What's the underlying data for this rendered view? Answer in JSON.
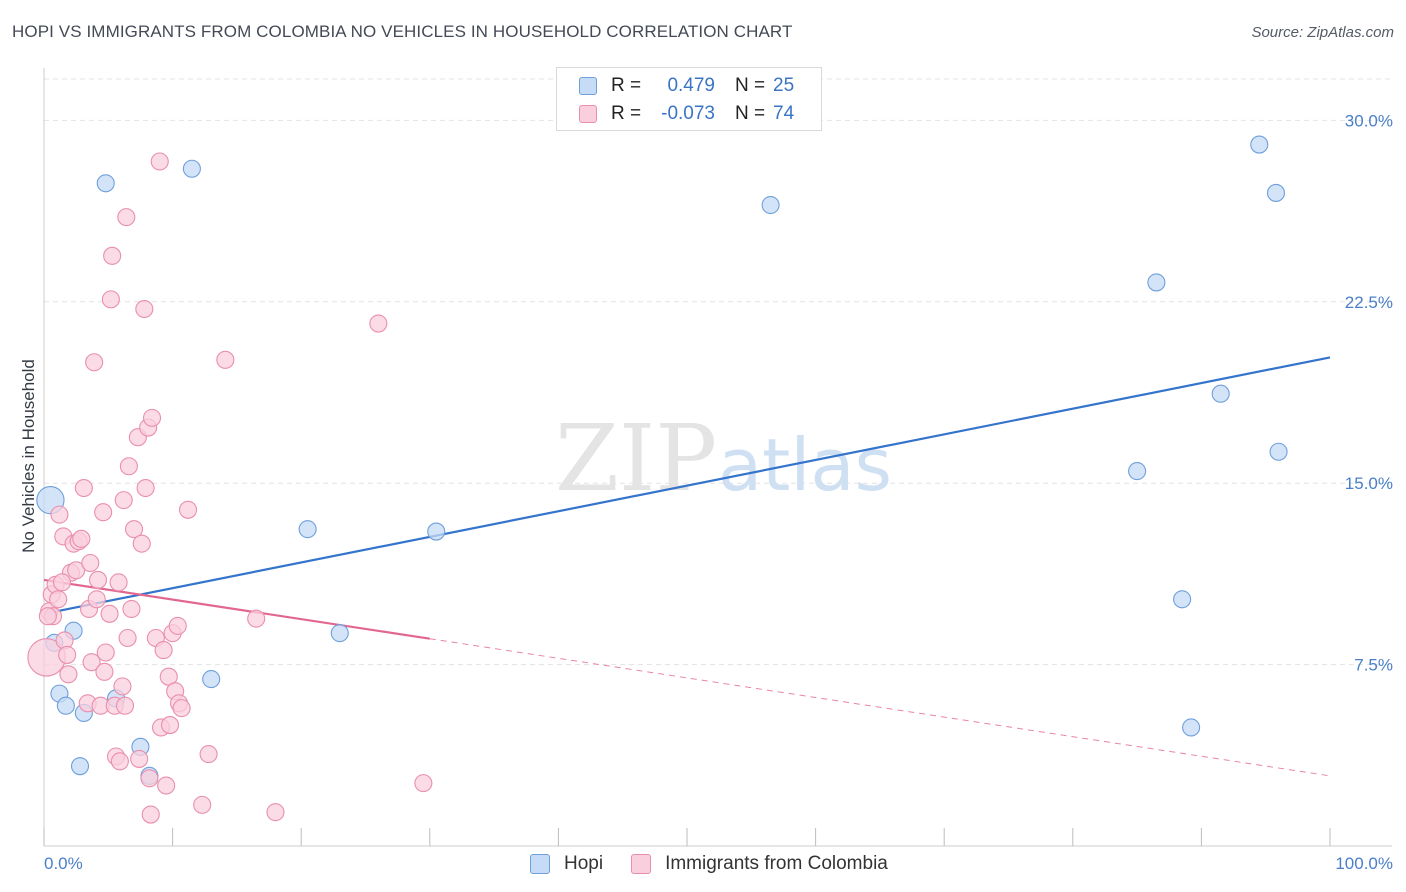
{
  "header": {
    "title": "HOPI VS IMMIGRANTS FROM COLOMBIA NO VEHICLES IN HOUSEHOLD CORRELATION CHART",
    "source": "Source: ZipAtlas.com"
  },
  "watermark": {
    "zip": "ZIP",
    "atlas": "atlas"
  },
  "legend": {
    "rows": [
      {
        "r_label": "R =",
        "r_value": "0.479",
        "n_label": "N =",
        "n_value": "25"
      },
      {
        "r_label": "R =",
        "r_value": "-0.073",
        "n_label": "N =",
        "n_value": "74"
      }
    ]
  },
  "colors": {
    "hopi_fill": "#c6dbf5",
    "hopi_stroke": "#6f9fdc",
    "hopi_line": "#3474cc",
    "col_fill": "#f9cfdd",
    "col_stroke": "#e98fac",
    "col_line": "#e2678f",
    "grid": "#e3e3e3",
    "tick": "#4a7fc8"
  },
  "chart_data": {
    "type": "scatter",
    "title": "HOPI VS IMMIGRANTS FROM COLOMBIA NO VEHICLES IN HOUSEHOLD CORRELATION CHART",
    "xlabel": "",
    "ylabel": "No Vehicles in Household",
    "xlim": [
      0,
      100
    ],
    "ylim": [
      0,
      32
    ],
    "x_tick_labels": [
      "0.0%",
      "100.0%"
    ],
    "y_ticks": [
      7.5,
      15.0,
      22.5,
      30.0
    ],
    "y_tick_labels": [
      "7.5%",
      "15.0%",
      "22.5%",
      "30.0%"
    ],
    "grid": true,
    "legend_position": "top-center",
    "series": [
      {
        "name": "Hopi",
        "r": 0.479,
        "n": 25,
        "trend": {
          "x0": 0,
          "y0": 9.6,
          "x1": 100,
          "y1": 20.2,
          "solid_to": 100
        },
        "points": [
          [
            0.5,
            14.3,
            1.6
          ],
          [
            0.8,
            8.4,
            1
          ],
          [
            1.2,
            6.3,
            1
          ],
          [
            1.7,
            5.8,
            1
          ],
          [
            2.3,
            8.9,
            1
          ],
          [
            2.8,
            3.3,
            1
          ],
          [
            3.1,
            5.5,
            1
          ],
          [
            4.8,
            27.4,
            1
          ],
          [
            5.6,
            6.1,
            1
          ],
          [
            7.5,
            4.1,
            1
          ],
          [
            8.2,
            2.9,
            1
          ],
          [
            11.5,
            28.0,
            1
          ],
          [
            13.0,
            6.9,
            1
          ],
          [
            20.5,
            13.1,
            1
          ],
          [
            23.0,
            8.8,
            1
          ],
          [
            30.5,
            13.0,
            1
          ],
          [
            56.5,
            26.5,
            1
          ],
          [
            85.0,
            15.5,
            1
          ],
          [
            86.5,
            23.3,
            1
          ],
          [
            88.5,
            10.2,
            1
          ],
          [
            89.2,
            4.9,
            1
          ],
          [
            91.5,
            18.7,
            1
          ],
          [
            94.5,
            29.0,
            1
          ],
          [
            95.8,
            27.0,
            1
          ],
          [
            96.0,
            16.3,
            1
          ]
        ]
      },
      {
        "name": "Immigrants from Colombia",
        "r": -0.073,
        "n": 74,
        "trend": {
          "x0": 0,
          "y0": 11.0,
          "x1": 100,
          "y1": 2.9,
          "solid_to": 30
        },
        "points": [
          [
            0.2,
            7.8,
            2.2
          ],
          [
            0.4,
            9.7,
            1
          ],
          [
            0.6,
            10.4,
            1
          ],
          [
            0.7,
            9.5,
            1
          ],
          [
            0.9,
            10.8,
            1
          ],
          [
            1.1,
            10.2,
            1
          ],
          [
            1.2,
            13.7,
            1
          ],
          [
            1.5,
            12.8,
            1
          ],
          [
            1.6,
            8.5,
            1
          ],
          [
            1.8,
            7.9,
            1
          ],
          [
            1.9,
            7.1,
            1
          ],
          [
            2.1,
            11.3,
            1
          ],
          [
            2.3,
            12.5,
            1
          ],
          [
            2.5,
            11.4,
            1
          ],
          [
            2.7,
            12.6,
            1
          ],
          [
            2.9,
            12.7,
            1
          ],
          [
            3.1,
            14.8,
            1
          ],
          [
            3.4,
            5.9,
            1
          ],
          [
            3.5,
            9.8,
            1
          ],
          [
            3.6,
            11.7,
            1
          ],
          [
            3.7,
            7.6,
            1
          ],
          [
            3.9,
            20.0,
            1
          ],
          [
            4.1,
            10.2,
            1
          ],
          [
            4.2,
            11.0,
            1
          ],
          [
            4.4,
            5.8,
            1
          ],
          [
            4.6,
            13.8,
            1
          ],
          [
            4.7,
            7.2,
            1
          ],
          [
            4.8,
            8.0,
            1
          ],
          [
            5.1,
            9.6,
            1
          ],
          [
            5.2,
            22.6,
            1
          ],
          [
            5.3,
            24.4,
            1
          ],
          [
            5.5,
            5.8,
            1
          ],
          [
            5.6,
            3.7,
            1
          ],
          [
            5.8,
            10.9,
            1
          ],
          [
            5.9,
            3.5,
            1
          ],
          [
            6.1,
            6.6,
            1
          ],
          [
            6.2,
            14.3,
            1
          ],
          [
            6.3,
            5.8,
            1
          ],
          [
            6.4,
            26.0,
            1
          ],
          [
            6.5,
            8.6,
            1
          ],
          [
            6.6,
            15.7,
            1
          ],
          [
            6.8,
            9.8,
            1
          ],
          [
            7.0,
            13.1,
            1
          ],
          [
            7.3,
            16.9,
            1
          ],
          [
            7.4,
            3.6,
            1
          ],
          [
            7.6,
            12.5,
            1
          ],
          [
            7.8,
            22.2,
            1
          ],
          [
            7.9,
            14.8,
            1
          ],
          [
            8.1,
            17.3,
            1
          ],
          [
            8.2,
            2.8,
            1
          ],
          [
            8.3,
            1.3,
            1
          ],
          [
            8.4,
            17.7,
            1
          ],
          [
            8.7,
            8.6,
            1
          ],
          [
            9.0,
            28.3,
            1
          ],
          [
            9.1,
            4.9,
            1
          ],
          [
            9.3,
            8.1,
            1
          ],
          [
            9.5,
            2.5,
            1
          ],
          [
            9.7,
            7.0,
            1
          ],
          [
            9.8,
            5.0,
            1
          ],
          [
            10.0,
            8.8,
            1
          ],
          [
            10.2,
            6.4,
            1
          ],
          [
            10.4,
            9.1,
            1
          ],
          [
            10.5,
            5.9,
            1
          ],
          [
            10.7,
            5.7,
            1
          ],
          [
            11.2,
            13.9,
            1
          ],
          [
            12.3,
            1.7,
            1
          ],
          [
            12.8,
            3.8,
            1
          ],
          [
            14.1,
            20.1,
            1
          ],
          [
            16.5,
            9.4,
            1
          ],
          [
            18.0,
            1.4,
            1
          ],
          [
            26.0,
            21.6,
            1
          ],
          [
            29.5,
            2.6,
            1
          ],
          [
            0.3,
            9.5,
            1
          ],
          [
            1.4,
            10.9,
            1
          ]
        ]
      }
    ]
  },
  "bottom_legend": {
    "items": [
      "Hopi",
      "Immigrants from Colombia"
    ]
  }
}
